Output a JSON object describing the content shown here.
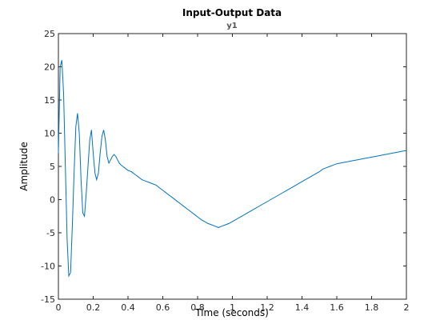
{
  "chart_data": {
    "type": "line",
    "title": "Input-Output Data",
    "subtitle": "y1",
    "xlabel": "Time (seconds)",
    "ylabel": "Amplitude",
    "xlim": [
      0,
      2
    ],
    "ylim": [
      -15,
      25
    ],
    "xticks": [
      0,
      0.2,
      0.4,
      0.6,
      0.8,
      1,
      1.2,
      1.4,
      1.6,
      1.8,
      2
    ],
    "xtick_labels": [
      "0",
      "0.2",
      "0.4",
      "0.6",
      "0.8",
      "1",
      "1.2",
      "1.4",
      "1.6",
      "1.8",
      "2"
    ],
    "yticks": [
      -15,
      -10,
      -5,
      0,
      5,
      10,
      15,
      20,
      25
    ],
    "ytick_labels": [
      "-15",
      "-10",
      "-5",
      "0",
      "5",
      "10",
      "15",
      "20",
      "25"
    ],
    "grid": false,
    "series": [
      {
        "color": "#0072bd",
        "x": [
          0,
          0.01,
          0.02,
          0.03,
          0.04,
          0.05,
          0.06,
          0.07,
          0.08,
          0.09,
          0.1,
          0.11,
          0.12,
          0.13,
          0.14,
          0.15,
          0.16,
          0.17,
          0.18,
          0.19,
          0.2,
          0.21,
          0.22,
          0.23,
          0.24,
          0.25,
          0.26,
          0.27,
          0.28,
          0.29,
          0.3,
          0.31,
          0.32,
          0.33,
          0.34,
          0.35,
          0.36,
          0.37,
          0.38,
          0.39,
          0.4,
          0.41,
          0.42,
          0.43,
          0.44,
          0.45,
          0.46,
          0.47,
          0.48,
          0.5,
          0.52,
          0.54,
          0.56,
          0.58,
          0.6,
          0.62,
          0.64,
          0.66,
          0.68,
          0.7,
          0.72,
          0.74,
          0.76,
          0.78,
          0.8,
          0.82,
          0.84,
          0.86,
          0.88,
          0.9,
          0.92,
          0.94,
          0.96,
          0.98,
          1,
          1.02,
          1.04,
          1.06,
          1.08,
          1.1,
          1.12,
          1.14,
          1.16,
          1.18,
          1.2,
          1.22,
          1.24,
          1.26,
          1.28,
          1.3,
          1.32,
          1.34,
          1.36,
          1.38,
          1.4,
          1.42,
          1.44,
          1.46,
          1.48,
          1.5,
          1.52,
          1.54,
          1.56,
          1.58,
          1.6,
          1.62,
          1.64,
          1.66,
          1.68,
          1.7,
          1.72,
          1.74,
          1.76,
          1.78,
          1.8,
          1.82,
          1.84,
          1.86,
          1.88,
          1.9,
          1.92,
          1.94,
          1.96,
          1.98,
          2
        ],
        "y": [
          7,
          20,
          21,
          16,
          5,
          -6,
          -11.5,
          -11,
          -4,
          4,
          11,
          13,
          10,
          3,
          -2,
          -2.5,
          1,
          5,
          9,
          10.5,
          7,
          4,
          3,
          4,
          7,
          9.5,
          10.5,
          9,
          6.5,
          5.5,
          6,
          6.5,
          6.8,
          6.5,
          6,
          5.5,
          5.2,
          5,
          4.8,
          4.6,
          4.4,
          4.3,
          4.2,
          4.0,
          3.8,
          3.6,
          3.4,
          3.2,
          3.0,
          2.8,
          2.6,
          2.4,
          2.2,
          1.8,
          1.4,
          1.0,
          0.6,
          0.2,
          -0.2,
          -0.6,
          -1.0,
          -1.4,
          -1.8,
          -2.2,
          -2.6,
          -3.0,
          -3.3,
          -3.6,
          -3.8,
          -4.0,
          -4.2,
          -4.0,
          -3.8,
          -3.6,
          -3.3,
          -3.0,
          -2.7,
          -2.4,
          -2.1,
          -1.8,
          -1.5,
          -1.2,
          -0.9,
          -0.6,
          -0.3,
          0.0,
          0.3,
          0.6,
          0.9,
          1.2,
          1.5,
          1.8,
          2.1,
          2.4,
          2.7,
          3.0,
          3.3,
          3.6,
          3.9,
          4.2,
          4.6,
          4.8,
          5,
          5.2,
          5.4,
          5.5,
          5.6,
          5.7,
          5.8,
          5.9,
          6.0,
          6.1,
          6.2,
          6.3,
          6.4,
          6.5,
          6.6,
          6.7,
          6.8,
          6.9,
          7.0,
          7.1,
          7.2,
          7.3,
          7.4
        ]
      }
    ]
  }
}
